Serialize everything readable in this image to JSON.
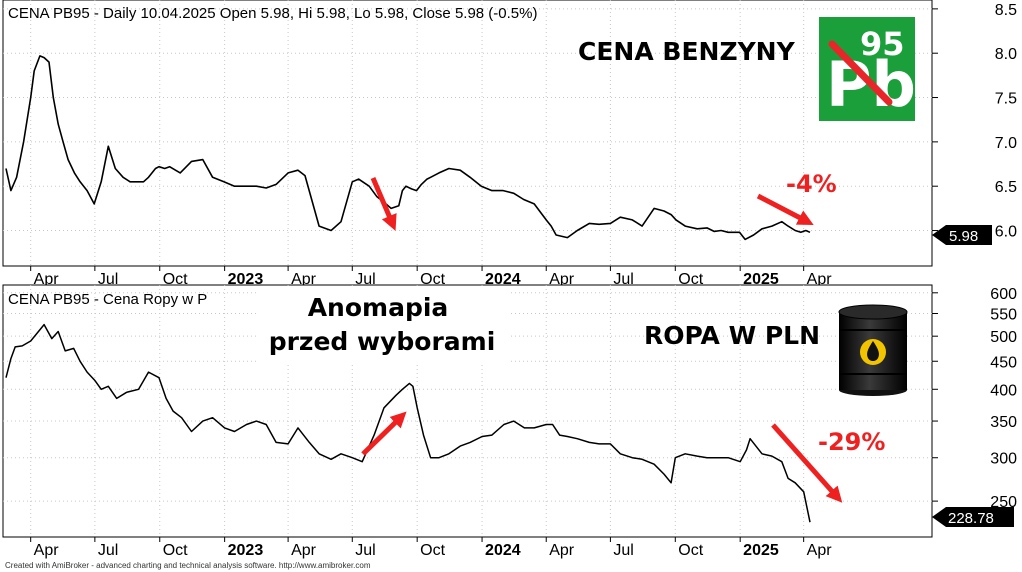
{
  "colors": {
    "line": "#000000",
    "grid": "#c8c8c8",
    "arrow": "#ee2020",
    "badge_bg": "#000000",
    "badge_fg": "#ffffff",
    "pb_green": "#1a9f3a"
  },
  "footer": "Created with AmiBroker - advanced charting and technical analysis software. http://www.amibroker.com",
  "top": {
    "header": "CENA PB95 - Daily 10.04.2025 Open 5.98, Hi 5.98, Lo 5.98, Close 5.98 (-0.5%)",
    "title": "CENA BENZYNY",
    "change_label": "-4%",
    "last_badge": "5.98",
    "logo": {
      "letters": "Pb",
      "number": "95",
      "icon": "pb95-crossed-logo"
    }
  },
  "bottom": {
    "header": "CENA PB95 - Cena Ropy w P",
    "annotation_line1": "Anomapia",
    "annotation_line2": "przed wyborami",
    "title": "ROPA W PLN",
    "change_label": "-29%",
    "last_badge": "228.78",
    "icon": "oil-barrel-icon"
  },
  "chart_data": [
    {
      "type": "line",
      "title": "CENA PB95 - Daily 10.04.2025 Open 5.98, Hi 5.98, Lo 5.98, Close 5.98 (-0.5%)",
      "scale": "linear",
      "grid": true,
      "ylim": [
        5.6,
        8.6
      ],
      "y_ticks": [
        "6.0",
        "6.5",
        "7.0",
        "7.5",
        "8.0",
        "8.5"
      ],
      "x_ticks": [
        {
          "label": "Apr",
          "date": "2022-04-01",
          "bold": false
        },
        {
          "label": "Jul",
          "date": "2022-07-01",
          "bold": false
        },
        {
          "label": "Oct",
          "date": "2022-10-01",
          "bold": false
        },
        {
          "label": "2023",
          "date": "2023-01-01",
          "bold": true
        },
        {
          "label": "Apr",
          "date": "2023-04-01",
          "bold": false
        },
        {
          "label": "Jul",
          "date": "2023-07-01",
          "bold": false
        },
        {
          "label": "Oct",
          "date": "2023-10-01",
          "bold": false
        },
        {
          "label": "2024",
          "date": "2024-01-01",
          "bold": true
        },
        {
          "label": "Apr",
          "date": "2024-04-01",
          "bold": false
        },
        {
          "label": "Jul",
          "date": "2024-07-01",
          "bold": false
        },
        {
          "label": "Oct",
          "date": "2024-10-01",
          "bold": false
        },
        {
          "label": "2025",
          "date": "2025-01-01",
          "bold": true
        },
        {
          "label": "Apr",
          "date": "2025-04-01",
          "bold": false
        }
      ],
      "series": [
        {
          "x": [
            "2022-02-25",
            "2022-03-04",
            "2022-03-12",
            "2022-03-22",
            "2022-04-01",
            "2022-04-06",
            "2022-04-14",
            "2022-04-20",
            "2022-04-27",
            "2022-05-03",
            "2022-05-10",
            "2022-05-17",
            "2022-05-24",
            "2022-06-02",
            "2022-06-10",
            "2022-06-20",
            "2022-06-30",
            "2022-07-10",
            "2022-07-20",
            "2022-07-30",
            "2022-08-10",
            "2022-08-20",
            "2022-08-30",
            "2022-09-08",
            "2022-09-15",
            "2022-09-20",
            "2022-09-25",
            "2022-09-30",
            "2022-10-08",
            "2022-10-15",
            "2022-10-30",
            "2022-11-15",
            "2022-12-01",
            "2022-12-15",
            "2022-12-31",
            "2023-01-15",
            "2023-01-31",
            "2023-02-15",
            "2023-03-01",
            "2023-03-15",
            "2023-04-01",
            "2023-04-15",
            "2023-04-25",
            "2023-05-15",
            "2023-06-01",
            "2023-06-15",
            "2023-07-01",
            "2023-07-10",
            "2023-07-25",
            "2023-08-05",
            "2023-08-15",
            "2023-08-25",
            "2023-09-05",
            "2023-09-10",
            "2023-09-15",
            "2023-09-23",
            "2023-09-30",
            "2023-10-07",
            "2023-10-15",
            "2023-10-20",
            "2023-11-01",
            "2023-11-15",
            "2023-12-01",
            "2023-12-15",
            "2023-12-31",
            "2024-01-15",
            "2024-01-31",
            "2024-02-15",
            "2024-02-29",
            "2024-03-15",
            "2024-04-01",
            "2024-04-08",
            "2024-04-15",
            "2024-05-01",
            "2024-05-15",
            "2024-06-01",
            "2024-06-15",
            "2024-07-01",
            "2024-07-15",
            "2024-08-01",
            "2024-08-15",
            "2024-09-01",
            "2024-09-15",
            "2024-09-25",
            "2024-10-02",
            "2024-10-15",
            "2024-11-01",
            "2024-11-15",
            "2024-11-25",
            "2024-12-05",
            "2024-12-15",
            "2024-12-31",
            "2025-01-08",
            "2025-01-20",
            "2025-02-01",
            "2025-02-15",
            "2025-03-01",
            "2025-03-10",
            "2025-03-20",
            "2025-03-28",
            "2025-04-04",
            "2025-04-10"
          ],
          "values": [
            6.7,
            6.45,
            6.6,
            7.0,
            7.5,
            7.8,
            7.97,
            7.95,
            7.9,
            7.5,
            7.2,
            7.0,
            6.8,
            6.65,
            6.55,
            6.45,
            6.3,
            6.55,
            6.95,
            6.7,
            6.6,
            6.55,
            6.55,
            6.55,
            6.6,
            6.65,
            6.7,
            6.72,
            6.7,
            6.72,
            6.65,
            6.78,
            6.8,
            6.6,
            6.55,
            6.5,
            6.5,
            6.5,
            6.48,
            6.52,
            6.65,
            6.68,
            6.62,
            6.05,
            6.0,
            6.1,
            6.55,
            6.58,
            6.5,
            6.38,
            6.32,
            6.25,
            6.28,
            6.45,
            6.5,
            6.47,
            6.45,
            6.52,
            6.58,
            6.6,
            6.65,
            6.7,
            6.68,
            6.6,
            6.5,
            6.45,
            6.45,
            6.42,
            6.35,
            6.3,
            6.12,
            6.05,
            5.95,
            5.92,
            6.0,
            6.08,
            6.07,
            6.08,
            6.15,
            6.12,
            6.05,
            6.25,
            6.22,
            6.18,
            6.12,
            6.05,
            6.02,
            6.03,
            5.99,
            6.0,
            5.98,
            5.98,
            5.9,
            5.95,
            6.02,
            6.05,
            6.1,
            6.05,
            6.0,
            5.98,
            6.0,
            5.98
          ]
        }
      ]
    },
    {
      "type": "line",
      "title": "CENA PB95 - Cena Ropy w P",
      "scale": "log",
      "grid": true,
      "ylim": [
        215,
        620
      ],
      "y_ticks": [
        "250",
        "300",
        "350",
        "400",
        "450",
        "500",
        "550",
        "600"
      ],
      "x_ticks": [
        {
          "label": "Apr",
          "date": "2022-04-01",
          "bold": false
        },
        {
          "label": "Jul",
          "date": "2022-07-01",
          "bold": false
        },
        {
          "label": "Oct",
          "date": "2022-10-01",
          "bold": false
        },
        {
          "label": "2023",
          "date": "2023-01-01",
          "bold": true
        },
        {
          "label": "Apr",
          "date": "2023-04-01",
          "bold": false
        },
        {
          "label": "Jul",
          "date": "2023-07-01",
          "bold": false
        },
        {
          "label": "Oct",
          "date": "2023-10-01",
          "bold": false
        },
        {
          "label": "2024",
          "date": "2024-01-01",
          "bold": true
        },
        {
          "label": "Apr",
          "date": "2024-04-01",
          "bold": false
        },
        {
          "label": "Jul",
          "date": "2024-07-01",
          "bold": false
        },
        {
          "label": "Oct",
          "date": "2024-10-01",
          "bold": false
        },
        {
          "label": "2025",
          "date": "2025-01-01",
          "bold": true
        },
        {
          "label": "Apr",
          "date": "2025-04-01",
          "bold": false
        }
      ],
      "series": [
        {
          "x": [
            "2022-02-25",
            "2022-03-04",
            "2022-03-10",
            "2022-03-20",
            "2022-04-01",
            "2022-04-20",
            "2022-05-01",
            "2022-05-10",
            "2022-05-20",
            "2022-06-01",
            "2022-06-10",
            "2022-06-20",
            "2022-07-01",
            "2022-07-10",
            "2022-07-20",
            "2022-08-01",
            "2022-08-15",
            "2022-09-01",
            "2022-09-15",
            "2022-09-30",
            "2022-10-10",
            "2022-10-20",
            "2022-11-01",
            "2022-11-15",
            "2022-12-01",
            "2022-12-15",
            "2023-01-01",
            "2023-01-15",
            "2023-02-01",
            "2023-02-15",
            "2023-03-01",
            "2023-03-15",
            "2023-04-01",
            "2023-04-15",
            "2023-05-01",
            "2023-05-15",
            "2023-06-01",
            "2023-06-15",
            "2023-07-01",
            "2023-07-15",
            "2023-08-01",
            "2023-08-15",
            "2023-09-01",
            "2023-09-10",
            "2023-09-20",
            "2023-09-25",
            "2023-10-01",
            "2023-10-10",
            "2023-10-20",
            "2023-11-01",
            "2023-11-15",
            "2023-12-01",
            "2023-12-15",
            "2024-01-01",
            "2024-01-15",
            "2024-02-01",
            "2024-02-15",
            "2024-03-01",
            "2024-03-15",
            "2024-04-01",
            "2024-04-10",
            "2024-04-20",
            "2024-05-01",
            "2024-05-15",
            "2024-06-01",
            "2024-06-15",
            "2024-07-01",
            "2024-07-15",
            "2024-08-01",
            "2024-08-15",
            "2024-09-01",
            "2024-09-15",
            "2024-09-25",
            "2024-10-01",
            "2024-10-15",
            "2024-11-01",
            "2024-11-15",
            "2024-12-01",
            "2024-12-15",
            "2025-01-01",
            "2025-01-10",
            "2025-01-15",
            "2025-02-01",
            "2025-02-15",
            "2025-03-01",
            "2025-03-10",
            "2025-03-20",
            "2025-04-01",
            "2025-04-10"
          ],
          "values": [
            420,
            455,
            478,
            480,
            490,
            525,
            495,
            510,
            470,
            475,
            450,
            430,
            415,
            400,
            405,
            385,
            395,
            400,
            430,
            420,
            385,
            365,
            355,
            335,
            350,
            355,
            340,
            335,
            345,
            350,
            345,
            320,
            318,
            340,
            320,
            305,
            298,
            305,
            300,
            295,
            330,
            370,
            390,
            400,
            410,
            405,
            370,
            330,
            300,
            300,
            305,
            315,
            320,
            328,
            330,
            345,
            350,
            340,
            340,
            345,
            345,
            330,
            328,
            325,
            320,
            318,
            318,
            305,
            300,
            298,
            292,
            280,
            270,
            300,
            305,
            302,
            300,
            300,
            300,
            295,
            310,
            325,
            305,
            302,
            295,
            275,
            270,
            260,
            228.78
          ]
        }
      ]
    }
  ]
}
